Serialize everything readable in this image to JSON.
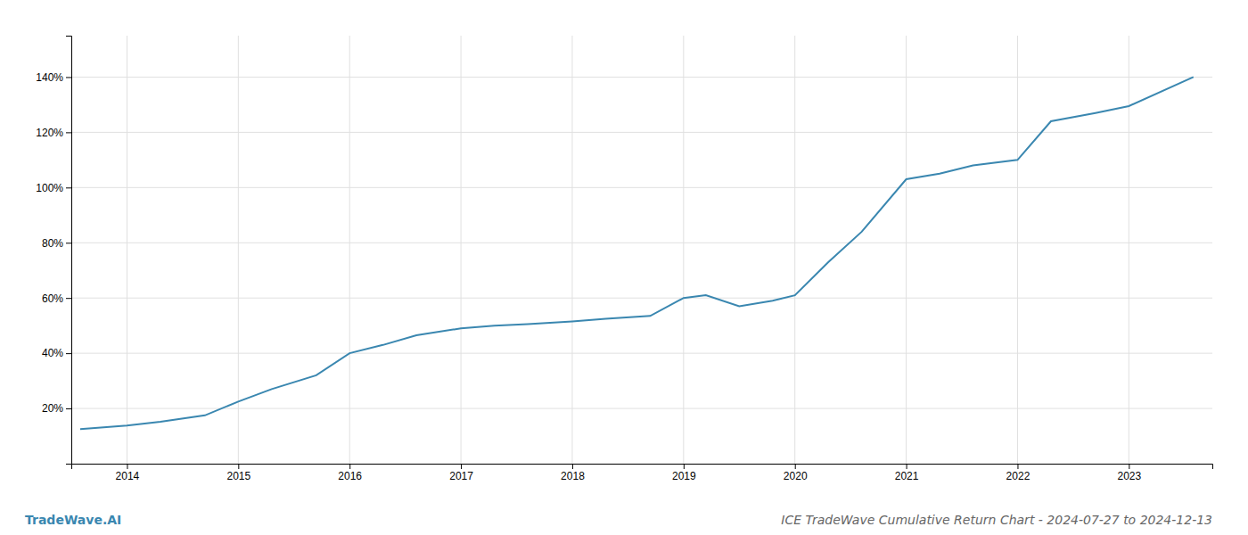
{
  "chart_data": {
    "type": "line",
    "title": "ICE TradeWave Cumulative Return Chart - 2024-07-27 to 2024-12-13",
    "annotations": [
      "TradeWave.AI"
    ],
    "x": [
      2013.58,
      2014.0,
      2014.3,
      2014.7,
      2015.0,
      2015.3,
      2015.7,
      2016.0,
      2016.3,
      2016.6,
      2017.0,
      2017.3,
      2017.6,
      2018.0,
      2018.3,
      2018.7,
      2019.0,
      2019.2,
      2019.5,
      2019.8,
      2020.0,
      2020.3,
      2020.6,
      2021.0,
      2021.3,
      2021.6,
      2022.0,
      2022.3,
      2022.7,
      2023.0,
      2023.58
    ],
    "values": [
      0.125,
      0.138,
      0.152,
      0.175,
      0.225,
      0.27,
      0.32,
      0.4,
      0.43,
      0.465,
      0.49,
      0.5,
      0.505,
      0.515,
      0.525,
      0.535,
      0.6,
      0.61,
      0.57,
      0.59,
      0.61,
      0.73,
      0.84,
      1.03,
      1.05,
      1.08,
      1.1,
      1.24,
      1.27,
      1.295,
      1.4
    ],
    "color": "#3a87b0",
    "xlim": [
      2013.5,
      2023.75
    ],
    "ylim": [
      0.0,
      1.55
    ],
    "xticks": [
      2014,
      2015,
      2016,
      2017,
      2018,
      2019,
      2020,
      2021,
      2022,
      2023
    ],
    "yticks": [
      {
        "value": 0.2,
        "label": "20%"
      },
      {
        "value": 0.4,
        "label": "40%"
      },
      {
        "value": 0.6,
        "label": "60%"
      },
      {
        "value": 0.8,
        "label": "80%"
      },
      {
        "value": 1.0,
        "label": "100%"
      },
      {
        "value": 1.2,
        "label": "120%"
      },
      {
        "value": 1.4,
        "label": "140%"
      }
    ],
    "grid": true
  }
}
